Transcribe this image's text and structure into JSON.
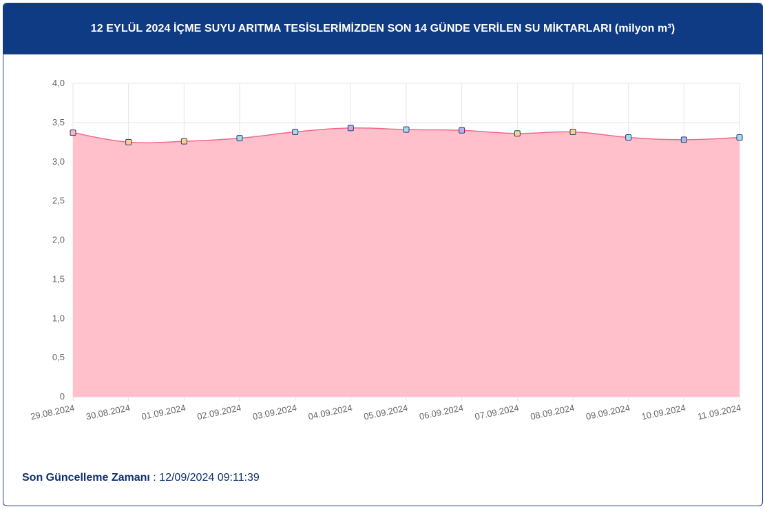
{
  "header": {
    "title": "12 EYLÜL 2024 İÇME SUYU ARITMA TESİSLERİMİZDEN SON 14 GÜNDE VERİLEN SU MİKTARLARI (milyon m³)"
  },
  "footer": {
    "label": "Son Güncelleme Zamanı",
    "separator": " : ",
    "value": "12/09/2024 09:11:39"
  },
  "colors": {
    "header_bg": "#0f3a84",
    "area_fill": "#ffc0cb",
    "line": "#f06a8a",
    "point_fill": [
      "#f9b5c6",
      "#f4d58a",
      "#f4d58a",
      "#a9d9ef",
      "#a9d9ef",
      "#b8b2ec",
      "#a9d9ef",
      "#b8b2ec",
      "#f4d58a",
      "#f4d58a",
      "#a9d9ef",
      "#b8b2ec",
      "#a9d9ef"
    ]
  },
  "chart_data": {
    "type": "area",
    "title": "12 EYLÜL 2024 İÇME SUYU ARITMA TESİSLERİMİZDEN SON 14 GÜNDE VERİLEN SU MİKTARLARI (milyon m³)",
    "categories": [
      "29.08.2024",
      "30.08.2024",
      "01.09.2024",
      "02.09.2024",
      "03.09.2024",
      "04.09.2024",
      "05.09.2024",
      "06.09.2024",
      "07.09.2024",
      "08.09.2024",
      "09.09.2024",
      "10.09.2024",
      "11.09.2024"
    ],
    "values": [
      3.37,
      3.25,
      3.26,
      3.3,
      3.38,
      3.43,
      3.41,
      3.4,
      3.36,
      3.38,
      3.31,
      3.28,
      3.31
    ],
    "ylim": [
      0,
      4
    ],
    "yticks": [
      "0",
      "0,5",
      "1,0",
      "1,5",
      "2,0",
      "2,5",
      "3,0",
      "3,5",
      "4,0"
    ],
    "grid": true,
    "legend": "none"
  }
}
